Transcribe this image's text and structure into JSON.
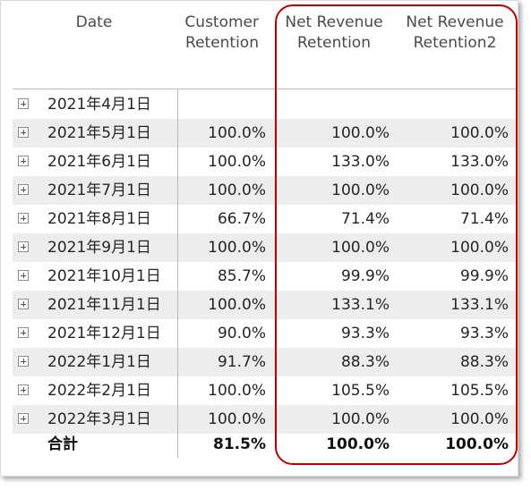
{
  "columns": {
    "date": "Date",
    "customer_retention_l1": "Customer",
    "customer_retention_l2": "Retention",
    "nrr_l1": "Net Revenue",
    "nrr_l2": "Retention",
    "nrr2_l1": "Net Revenue",
    "nrr2_l2": "Retention2"
  },
  "rows": [
    {
      "date": "2021年4月1日",
      "customer_retention": "",
      "nrr": "",
      "nrr2": ""
    },
    {
      "date": "2021年5月1日",
      "customer_retention": "100.0%",
      "nrr": "100.0%",
      "nrr2": "100.0%"
    },
    {
      "date": "2021年6月1日",
      "customer_retention": "100.0%",
      "nrr": "133.0%",
      "nrr2": "133.0%"
    },
    {
      "date": "2021年7月1日",
      "customer_retention": "100.0%",
      "nrr": "100.0%",
      "nrr2": "100.0%"
    },
    {
      "date": "2021年8月1日",
      "customer_retention": "66.7%",
      "nrr": "71.4%",
      "nrr2": "71.4%"
    },
    {
      "date": "2021年9月1日",
      "customer_retention": "100.0%",
      "nrr": "100.0%",
      "nrr2": "100.0%"
    },
    {
      "date": "2021年10月1日",
      "customer_retention": "85.7%",
      "nrr": "99.9%",
      "nrr2": "99.9%"
    },
    {
      "date": "2021年11月1日",
      "customer_retention": "100.0%",
      "nrr": "133.1%",
      "nrr2": "133.1%"
    },
    {
      "date": "2021年12月1日",
      "customer_retention": "90.0%",
      "nrr": "93.3%",
      "nrr2": "93.3%"
    },
    {
      "date": "2022年1月1日",
      "customer_retention": "91.7%",
      "nrr": "88.3%",
      "nrr2": "88.3%"
    },
    {
      "date": "2022年2月1日",
      "customer_retention": "100.0%",
      "nrr": "105.5%",
      "nrr2": "105.5%"
    },
    {
      "date": "2022年3月1日",
      "customer_retention": "100.0%",
      "nrr": "100.0%",
      "nrr2": "100.0%"
    }
  ],
  "total": {
    "label": "合計",
    "customer_retention": "81.5%",
    "nrr": "100.0%",
    "nrr2": "100.0%"
  },
  "colors": {
    "highlight": "#c00000",
    "row_shade": "#ededed",
    "grid_line": "#a9bccc"
  }
}
